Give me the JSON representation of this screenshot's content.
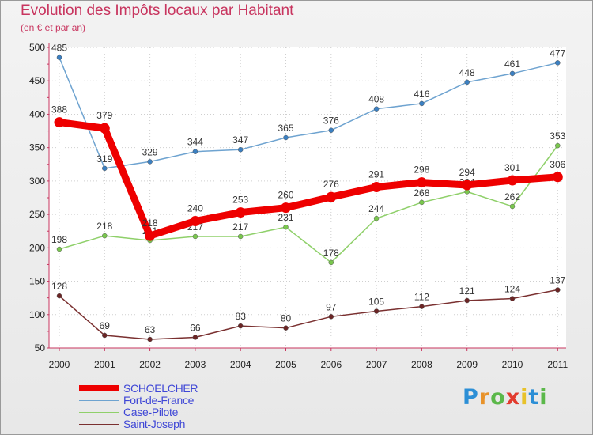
{
  "header": {
    "title": "Evolution des Impôts locaux par Habitant",
    "subtitle": "(en € et par an)"
  },
  "chart_data": {
    "type": "line",
    "title": "Evolution des Impôts locaux par Habitant",
    "subtitle": "(en € et par an)",
    "xlabel": "",
    "ylabel": "",
    "categories": [
      "2000",
      "2001",
      "2002",
      "2003",
      "2004",
      "2005",
      "2006",
      "2007",
      "2008",
      "2009",
      "2010",
      "2011"
    ],
    "yticks": [
      50,
      100,
      150,
      200,
      250,
      300,
      350,
      400,
      450,
      500
    ],
    "ylim": [
      50,
      500
    ],
    "grid": true,
    "legend_position": "bottom-left",
    "series": [
      {
        "name": "Fort-de-France",
        "color": "#6ea3d0",
        "marker": "#3b80c2",
        "values": [
          485,
          319,
          329,
          344,
          347,
          365,
          376,
          408,
          416,
          448,
          461,
          477
        ]
      },
      {
        "name": "Case-Pilote",
        "color": "#8fd06a",
        "marker": "#79c74d",
        "values": [
          198,
          218,
          211,
          217,
          217,
          231,
          178,
          244,
          268,
          284,
          262,
          353
        ]
      },
      {
        "name": "Saint-Joseph",
        "color": "#7a3030",
        "marker": "#6b2525",
        "values": [
          128,
          69,
          63,
          66,
          83,
          80,
          97,
          105,
          112,
          121,
          124,
          137
        ]
      },
      {
        "name": "SCHOELCHER",
        "color": "#ee0000",
        "marker": "#ee0000",
        "thick": true,
        "values": [
          388,
          379,
          218,
          240,
          253,
          260,
          276,
          291,
          298,
          294,
          301,
          306
        ]
      }
    ]
  },
  "legend": {
    "items": [
      {
        "label": "SCHOELCHER",
        "color": "#ee0000",
        "text_color": "#3f47d6"
      },
      {
        "label": "Fort-de-France",
        "color": "#6ea3d0",
        "text_color": "#3f47d6"
      },
      {
        "label": "Case-Pilote",
        "color": "#8fd06a",
        "text_color": "#3f47d6"
      },
      {
        "label": "Saint-Joseph",
        "color": "#7a3030",
        "text_color": "#3f47d6"
      }
    ]
  },
  "logo": {
    "letters": [
      "P",
      "r",
      "o",
      "x",
      "i",
      "t",
      "i"
    ],
    "colors": [
      "#2c8fd6",
      "#e8922a",
      "#5bb84a",
      "#e23b2e",
      "#e8c22a",
      "#2c8fd6",
      "#5bb84a"
    ]
  }
}
